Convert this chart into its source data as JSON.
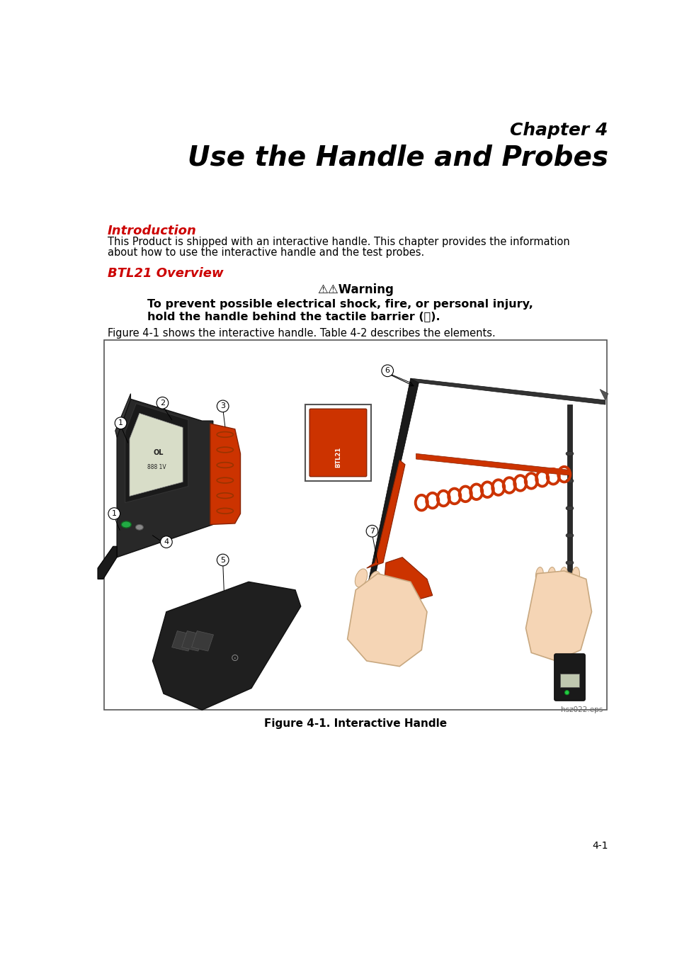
{
  "bg_color": "#ffffff",
  "chapter_label": "Chapter 4",
  "chapter_title": "Use the Handle and Probes",
  "section1_title": "Introduction",
  "section1_text_line1": "This Product is shipped with an interactive handle. This chapter provides the information",
  "section1_text_line2": "about how to use the interactive handle and the test probes.",
  "section2_title": "BTL21 Overview",
  "warning_title": "⚠⚠Warning",
  "warning_line1": "To prevent possible electrical shock, fire, or personal injury,",
  "warning_line2": "hold the handle behind the tactile barrier (⓷).",
  "figure_pre_text": "Figure 4-1 shows the interactive handle. Table 4-2 describes the elements.",
  "figure_label": "Figure 4-1. Interactive Handle",
  "file_label": "hsz022.eps",
  "page_number": "4-1",
  "title_color": "#000000",
  "section_color": "#cc0000",
  "body_color": "#000000",
  "border_color": "#555555",
  "orange_color": "#cc3300",
  "dark_color": "#2a2a2a",
  "hand_color": "#f0d0b0"
}
